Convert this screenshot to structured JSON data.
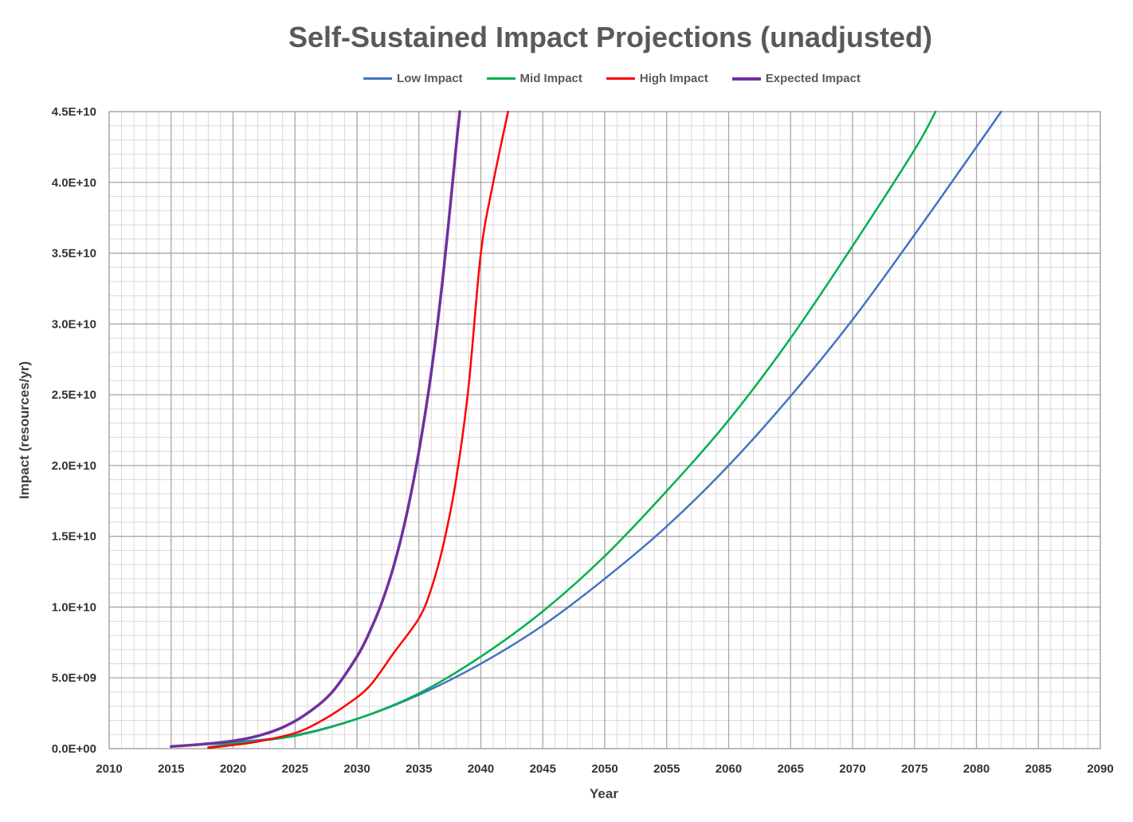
{
  "chart_data": {
    "type": "line",
    "title": "Self-Sustained Impact Projections (unadjusted)",
    "xlabel": "Year",
    "ylabel": "Impact (resources/yr)",
    "xlim": [
      2010,
      2090
    ],
    "ylim": [
      0,
      45000000000
    ],
    "x_ticks": [
      "2010",
      "2015",
      "2020",
      "2025",
      "2030",
      "2035",
      "2040",
      "2045",
      "2050",
      "2055",
      "2060",
      "2065",
      "2070",
      "2075",
      "2080",
      "2085",
      "2090"
    ],
    "y_ticks": [
      "0.0E+00",
      "5.0E+09",
      "1.0E+10",
      "1.5E+10",
      "2.0E+10",
      "2.5E+10",
      "3.0E+10",
      "3.5E+10",
      "4.0E+10",
      "4.5E+10"
    ],
    "grid": true,
    "legend_position": "top",
    "series": [
      {
        "name": "Low Impact",
        "color": "#4472C4",
        "points": [
          [
            2015,
            140000000.0
          ],
          [
            2020,
            450000000.0
          ],
          [
            2025,
            950000000.0
          ],
          [
            2030,
            2100000000.0
          ],
          [
            2035,
            3800000000.0
          ],
          [
            2040,
            6000000000.0
          ],
          [
            2045,
            8700000000.0
          ],
          [
            2050,
            12000000000.0
          ],
          [
            2055,
            15700000000.0
          ],
          [
            2060,
            20000000000.0
          ],
          [
            2065,
            24900000000.0
          ],
          [
            2070,
            30300000000.0
          ],
          [
            2075,
            36300000000.0
          ],
          [
            2080,
            42500000000.0
          ],
          [
            2082,
            45000000000.0
          ]
        ]
      },
      {
        "name": "Mid Impact",
        "color": "#00B050",
        "points": [
          [
            2018,
            100000000.0
          ],
          [
            2020,
            350000000.0
          ],
          [
            2025,
            900000000.0
          ],
          [
            2030,
            2100000000.0
          ],
          [
            2035,
            3900000000.0
          ],
          [
            2040,
            6500000000.0
          ],
          [
            2045,
            9700000000.0
          ],
          [
            2050,
            13600000000.0
          ],
          [
            2055,
            18200000000.0
          ],
          [
            2060,
            23200000000.0
          ],
          [
            2065,
            29000000000.0
          ],
          [
            2070,
            35500000000.0
          ],
          [
            2075,
            42300000000.0
          ],
          [
            2076.7,
            45000000000.0
          ]
        ]
      },
      {
        "name": "High Impact",
        "color": "#FF0000",
        "points": [
          [
            2018,
            50000000.0
          ],
          [
            2020,
            250000000.0
          ],
          [
            2022,
            500000000.0
          ],
          [
            2025,
            1100000000.0
          ],
          [
            2027,
            1900000000.0
          ],
          [
            2029,
            3000000000.0
          ],
          [
            2031,
            4400000000.0
          ],
          [
            2033,
            6800000000.0
          ],
          [
            2035,
            9200000000.0
          ],
          [
            2036,
            11300000000.0
          ],
          [
            2037,
            14500000000.0
          ],
          [
            2038,
            19000000000.0
          ],
          [
            2039,
            25500000000.0
          ],
          [
            2040,
            35000000000.0
          ],
          [
            2041,
            40000000000.0
          ],
          [
            2042.2,
            45000000000.0
          ]
        ]
      },
      {
        "name": "Expected Impact",
        "color": "#7030A0",
        "points": [
          [
            2015,
            150000000.0
          ],
          [
            2018,
            350000000.0
          ],
          [
            2020,
            550000000.0
          ],
          [
            2022,
            900000000.0
          ],
          [
            2024,
            1500000000.0
          ],
          [
            2026,
            2500000000.0
          ],
          [
            2028,
            4000000000.0
          ],
          [
            2030,
            6500000000.0
          ],
          [
            2031,
            8200000000.0
          ],
          [
            2032,
            10300000000.0
          ],
          [
            2033,
            13000000000.0
          ],
          [
            2034,
            16500000000.0
          ],
          [
            2035,
            21000000000.0
          ],
          [
            2036,
            26600000000.0
          ],
          [
            2037,
            33800000000.0
          ],
          [
            2038,
            42500000000.0
          ],
          [
            2038.3,
            45000000000.0
          ]
        ]
      }
    ]
  }
}
